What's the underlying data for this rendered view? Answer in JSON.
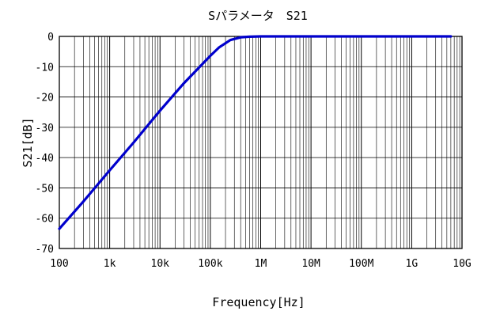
{
  "chart_data": {
    "type": "line",
    "title": "Sパラメータ　S21",
    "xlabel": "Frequency[Hz]",
    "ylabel": "S21[dB]",
    "x_scale": "log",
    "xlim": [
      100,
      10000000000
    ],
    "ylim": [
      -70,
      0
    ],
    "grid": true,
    "x_ticks": [
      {
        "value": 100,
        "label": "100"
      },
      {
        "value": 1000,
        "label": "1k"
      },
      {
        "value": 10000,
        "label": "10k"
      },
      {
        "value": 100000,
        "label": "100k"
      },
      {
        "value": 1000000,
        "label": "1M"
      },
      {
        "value": 10000000,
        "label": "10M"
      },
      {
        "value": 100000000,
        "label": "100M"
      },
      {
        "value": 1000000000,
        "label": "1G"
      },
      {
        "value": 10000000000,
        "label": "10G"
      }
    ],
    "y_ticks": [
      {
        "value": 0,
        "label": "0"
      },
      {
        "value": -10,
        "label": "-10"
      },
      {
        "value": -20,
        "label": "-20"
      },
      {
        "value": -30,
        "label": "-30"
      },
      {
        "value": -40,
        "label": "-40"
      },
      {
        "value": -50,
        "label": "-50"
      },
      {
        "value": -60,
        "label": "-60"
      },
      {
        "value": -70,
        "label": "-70"
      }
    ],
    "series": [
      {
        "color": "#0000cc",
        "x": [
          100,
          300,
          1000,
          3000,
          10000,
          30000,
          100000,
          150000,
          250000,
          400000,
          600000,
          1000000,
          10000000,
          100000000,
          1000000000,
          6000000000
        ],
        "y": [
          -63.5,
          -54.5,
          -44.2,
          -35,
          -24.5,
          -15.4,
          -6.4,
          -3.6,
          -1.2,
          -0.3,
          -0.1,
          0,
          0,
          0,
          0,
          0
        ]
      }
    ]
  },
  "colors": {
    "grid": "#000000",
    "series": "#0000cc",
    "background": "#ffffff"
  }
}
